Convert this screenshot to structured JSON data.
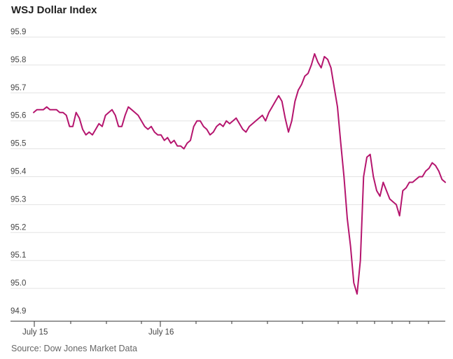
{
  "title": "WSJ Dollar Index",
  "source": "Source: Dow Jones Market Data",
  "colors": {
    "line": "#b5156e",
    "grid": "#e3e3e3",
    "axis": "#333333",
    "text": "#444444"
  },
  "chart_data": {
    "type": "line",
    "title": "WSJ Dollar Index",
    "xlabel": "",
    "ylabel": "",
    "ylim": [
      94.9,
      95.9
    ],
    "yticks": [
      "95.9",
      "95.8",
      "95.7",
      "95.6",
      "95.5",
      "95.4",
      "95.3",
      "95.2",
      "95.1",
      "95.0",
      "94.9"
    ],
    "x_tick_labels": [
      "July 15",
      "July 16"
    ],
    "grid": "horizontal",
    "series": [
      {
        "values": [
          95.63,
          95.64,
          95.64,
          95.64,
          95.65,
          95.64,
          95.64,
          95.64,
          95.63,
          95.63,
          95.62,
          95.58,
          95.58,
          95.63,
          95.61,
          95.57,
          95.55,
          95.56,
          95.55,
          95.57,
          95.59,
          95.58,
          95.62,
          95.63,
          95.64,
          95.62,
          95.58,
          95.58,
          95.62,
          95.65,
          95.64,
          95.63,
          95.62,
          95.6,
          95.58,
          95.57,
          95.58,
          95.56,
          95.55,
          95.55,
          95.53,
          95.54,
          95.52,
          95.53,
          95.51,
          95.51,
          95.5,
          95.52,
          95.53,
          95.58,
          95.6,
          95.6,
          95.58,
          95.57,
          95.55,
          95.56,
          95.58,
          95.59,
          95.58,
          95.6,
          95.59,
          95.6,
          95.61,
          95.59,
          95.57,
          95.56,
          95.58,
          95.59,
          95.6,
          95.61,
          95.62,
          95.6,
          95.63,
          95.65,
          95.67,
          95.69,
          95.67,
          95.61,
          95.56,
          95.6,
          95.67,
          95.71,
          95.73,
          95.76,
          95.77,
          95.8,
          95.84,
          95.81,
          95.79,
          95.83,
          95.82,
          95.79,
          95.72,
          95.65,
          95.52,
          95.4,
          95.25,
          95.15,
          95.02,
          94.98,
          95.1,
          95.4,
          95.47,
          95.48,
          95.4,
          95.35,
          95.33,
          95.38,
          95.35,
          95.32,
          95.31,
          95.3,
          95.26,
          95.35,
          95.36,
          95.38,
          95.38,
          95.39,
          95.4,
          95.4,
          95.42,
          95.43,
          95.45,
          95.44,
          95.42,
          95.39,
          95.38
        ]
      }
    ]
  }
}
